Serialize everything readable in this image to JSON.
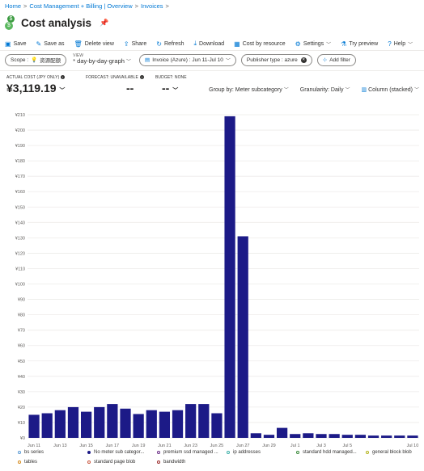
{
  "breadcrumb": [
    "Home",
    "Cost Management + Billing | Overview",
    "Invoices"
  ],
  "page": {
    "title": "Cost analysis"
  },
  "toolbar": [
    {
      "label": "Save",
      "icon": "save-icon",
      "glyph": "▣"
    },
    {
      "label": "Save as",
      "icon": "save-as-icon",
      "glyph": "✎"
    },
    {
      "label": "Delete view",
      "icon": "trash-icon",
      "glyph": "🗑"
    },
    {
      "label": "Share",
      "icon": "share-icon",
      "glyph": "⇪"
    },
    {
      "label": "Refresh",
      "icon": "refresh-icon",
      "glyph": "↻"
    },
    {
      "label": "Download",
      "icon": "download-icon",
      "glyph": "⤓"
    },
    {
      "label": "Cost by resource",
      "icon": "table-icon",
      "glyph": "▦"
    },
    {
      "label": "Settings",
      "icon": "gear-icon",
      "glyph": "⚙",
      "dropdown": true
    },
    {
      "label": "Try preview",
      "icon": "flask-icon",
      "glyph": "⚗"
    },
    {
      "label": "Help",
      "icon": "help-icon",
      "glyph": "?",
      "dropdown": true
    }
  ],
  "filters": {
    "scope_key": "Scope :",
    "scope_value": "资源配额",
    "view_label": "VIEW",
    "view_value": "* day-by-day-graph",
    "invoice": "Invoice (Azure) : Jun 11-Jul 10",
    "publisher": "Publisher type : azure",
    "add_filter": "Add filter"
  },
  "kpis": {
    "actual_label": "ACTUAL COST (JPY ONLY)",
    "actual_value": "¥3,119.19",
    "forecast_label": "FORECAST: UNAVAILABLE",
    "forecast_value": "--",
    "budget_label": "BUDGET: NONE",
    "budget_value": "--"
  },
  "controls": {
    "group_by": "Group by: Meter subcategory",
    "granularity": "Granularity: Daily",
    "chart_type": "Column (stacked)"
  },
  "chart_data": {
    "type": "bar",
    "ylim": [
      0,
      210
    ],
    "ytick_labels": [
      "¥0",
      "¥10",
      "¥20",
      "¥30",
      "¥40",
      "¥50",
      "¥60",
      "¥70",
      "¥80",
      "¥90",
      "¥100",
      "¥110",
      "¥120",
      "¥130",
      "¥140",
      "¥150",
      "¥160",
      "¥170",
      "¥180",
      "¥190",
      "¥200",
      "¥210"
    ],
    "categories": [
      "Jun 11",
      "Jun 12",
      "Jun 13",
      "Jun 14",
      "Jun 15",
      "Jun 16",
      "Jun 17",
      "Jun 18",
      "Jun 19",
      "Jun 20",
      "Jun 21",
      "Jun 22",
      "Jun 23",
      "Jun 24",
      "Jun 25",
      "Jun 26",
      "Jun 27",
      "Jun 28",
      "Jun 29",
      "Jun 30",
      "Jul 1",
      "Jul 2",
      "Jul 3",
      "Jul 4",
      "Jul 5",
      "Jul 6",
      "Jul 7",
      "Jul 8",
      "Jul 9",
      "Jul 10"
    ],
    "xtick_labels": [
      "Jun 11",
      "Jun 13",
      "Jun 15",
      "Jun 17",
      "Jun 19",
      "Jun 21",
      "Jun 23",
      "Jun 25",
      "Jun 27",
      "Jun 29",
      "Jul 1",
      "Jul 3",
      "Jul 5",
      "Jul 10"
    ],
    "values": [
      15,
      16,
      18,
      20,
      17,
      20,
      22,
      19,
      15.5,
      18,
      17,
      18,
      22,
      22,
      16,
      209,
      131,
      3,
      2,
      6.5,
      2.5,
      3,
      2.5,
      2.5,
      2,
      2,
      1.5,
      1.5,
      1.5,
      1.5
    ],
    "series": [
      {
        "name": "No meter sub categor...",
        "color": "#1c1a87"
      }
    ],
    "bar_color": "#1c1a87",
    "grid": true
  },
  "legend": [
    {
      "label": "bs series",
      "color": "#5b9bd5"
    },
    {
      "label": "No meter sub categor...",
      "color": "#1c1a87",
      "filled": true
    },
    {
      "label": "premium ssd managed ...",
      "color": "#6b2f87"
    },
    {
      "label": "ip addresses",
      "color": "#3fb0a9"
    },
    {
      "label": "standard hdd managed...",
      "color": "#3b8a3b"
    },
    {
      "label": "general block blob",
      "color": "#b5b51f"
    },
    {
      "label": "tables",
      "color": "#d68c1f"
    },
    {
      "label": "standard page blob",
      "color": "#c8553d"
    },
    {
      "label": "bandwidth",
      "color": "#9b2b2b"
    }
  ]
}
